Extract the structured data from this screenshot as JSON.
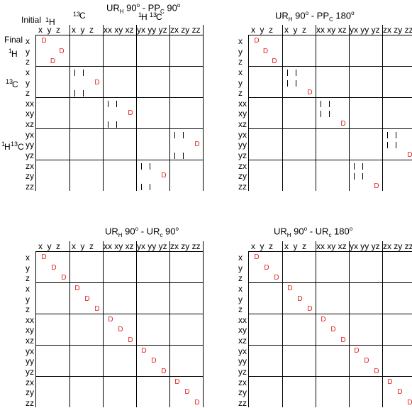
{
  "panels": [
    {
      "id": "p1",
      "ur": "UR",
      "ur_sub": "H",
      "ur_angle": "90",
      "ur_deg": "o",
      "sep": " - ",
      "second": "PP",
      "second_sub": "C",
      "second_angle": "90",
      "second_deg": "o"
    },
    {
      "id": "p2",
      "ur": "UR",
      "ur_sub": "H",
      "ur_angle": "90",
      "ur_deg": "o",
      "sep": " - ",
      "second": "PP",
      "second_sub": "C",
      "second_angle": "180",
      "second_deg": "o"
    },
    {
      "id": "p3",
      "ur": "UR",
      "ur_sub": "H",
      "ur_angle": "90",
      "ur_deg": "o",
      "sep": " - ",
      "second": "UR",
      "second_sub": "c",
      "second_angle": "90",
      "second_deg": "o"
    },
    {
      "id": "p4",
      "ur": "UR",
      "ur_sub": "H",
      "ur_angle": "90",
      "ur_deg": "o",
      "sep": " - ",
      "second": "UR",
      "second_sub": "c",
      "second_angle": "180",
      "second_deg": "o"
    }
  ],
  "labels": {
    "initial": "Initial",
    "final": "Final",
    "h1": "1H",
    "h1_sup": "1",
    "h1_letter": "H",
    "c13_sup": "13",
    "c13_letter": "C",
    "hc_label_sup1": "1",
    "hc_label_h": "H",
    "hc_label_sup2": "13",
    "hc_label_c": "C"
  },
  "columns": [
    "x",
    "y",
    "z",
    "x",
    "y",
    "z",
    "xx",
    "xy",
    "xz",
    "yx",
    "yy",
    "yz",
    "zx",
    "zy",
    "zz"
  ],
  "rows": [
    "x",
    "y",
    "z",
    "x",
    "y",
    "z",
    "xx",
    "xy",
    "xz",
    "yx",
    "yy",
    "yz",
    "zx",
    "zy",
    "zz"
  ],
  "marks": {
    "D": "D",
    "bar": "|"
  }
}
